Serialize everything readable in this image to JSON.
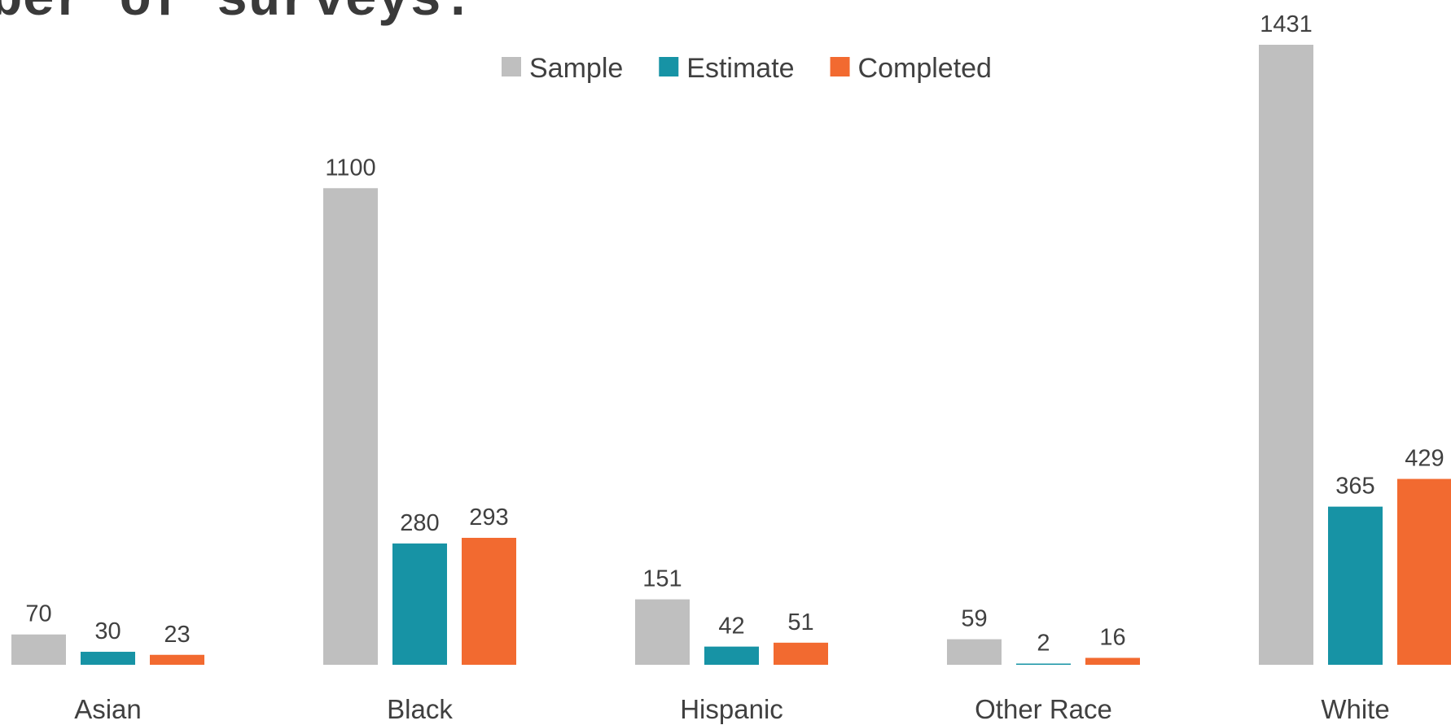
{
  "title": "ber of surveys:",
  "chart_data": {
    "type": "bar",
    "categories": [
      "Asian",
      "Black",
      "Hispanic",
      "Other Race",
      "White"
    ],
    "series": [
      {
        "name": "Sample",
        "color": "#BFBFBF",
        "values": [
          70,
          1100,
          151,
          59,
          1431
        ]
      },
      {
        "name": "Estimate",
        "color": "#1793A5",
        "values": [
          30,
          280,
          42,
          2,
          365
        ]
      },
      {
        "name": "Completed",
        "color": "#F26A30",
        "values": [
          23,
          293,
          51,
          16,
          429
        ]
      }
    ],
    "ylim": [
      0,
      1431
    ],
    "legend": "top-center",
    "grid": false
  }
}
